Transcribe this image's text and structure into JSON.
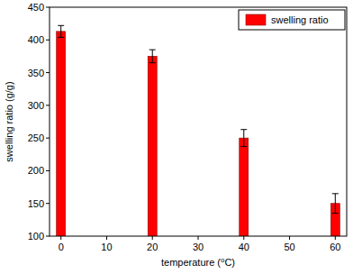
{
  "chart_data": {
    "type": "bar",
    "x_label": "temperature (⁰C)",
    "y_label": "swelling ratio (g/g)",
    "x": [
      0,
      20,
      40,
      60
    ],
    "series": [
      {
        "name": "swelling ratio",
        "color": "#ff0000",
        "values": [
          413,
          375,
          250,
          150
        ],
        "errors": [
          9,
          10,
          13,
          15
        ]
      }
    ],
    "xlim": [
      -2.5,
      62.5
    ],
    "xticks": [
      0,
      10,
      20,
      30,
      40,
      50,
      60
    ],
    "ylim": [
      100,
      450
    ],
    "yticks": [
      100,
      150,
      200,
      250,
      300,
      350,
      400,
      450
    ],
    "legend": "upper right",
    "grid": false
  }
}
